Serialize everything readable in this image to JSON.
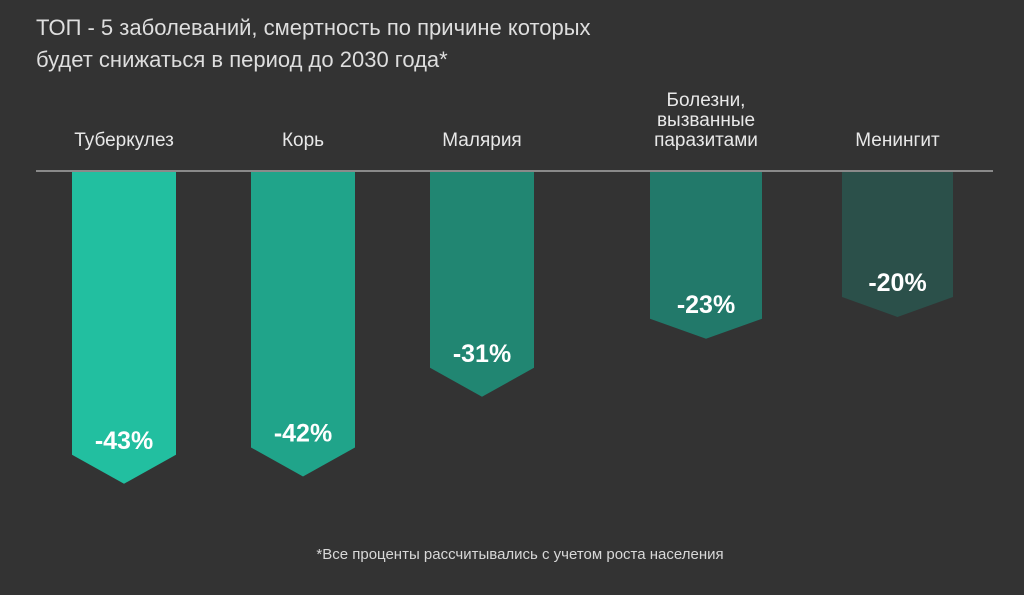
{
  "chart_data": {
    "type": "bar",
    "title": [
      "ТОП - 5 заболеваний, смертность по причине которых",
      "будет снижаться в период до 2030 года*"
    ],
    "categories": [
      [
        "Туберкулез"
      ],
      [
        "Корь"
      ],
      [
        "Малярия"
      ],
      [
        "Болезни,",
        "вызванные",
        "паразитами"
      ],
      [
        "Менингит"
      ]
    ],
    "values": [
      -43,
      -42,
      -31,
      -23,
      -20
    ],
    "data_labels": [
      "-43%",
      "-42%",
      "-31%",
      "-23%",
      "-20%"
    ],
    "colors": [
      "#22bfa0",
      "#20a48a",
      "#218672",
      "#22796a",
      "#2b504a"
    ],
    "xlabel": "",
    "ylabel": "",
    "ylim": [
      -45,
      0
    ],
    "grid": false,
    "footnote": "*Все проценты рассчитывались с учетом роста населения"
  }
}
